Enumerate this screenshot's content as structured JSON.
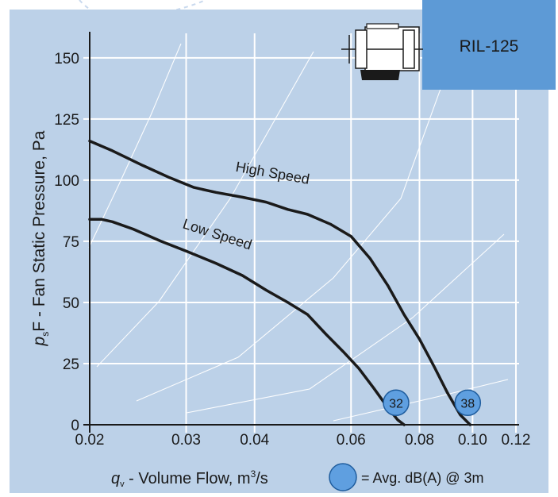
{
  "chart_data": {
    "type": "line",
    "model_label": "RIL-125",
    "ylabel_prefix": "p",
    "ylabel_sub": "s",
    "ylabel_rest": "F - Fan Static Pressure, Pa",
    "xlabel_prefix": "q",
    "xlabel_sub": "v",
    "xlabel_rest": " - Volume Flow, m",
    "xlabel_sup": "3",
    "xlabel_end": "/s",
    "x_scale": "log",
    "xlim": [
      0.02,
      0.12
    ],
    "ylim": [
      0,
      160
    ],
    "x_ticks": [
      {
        "value": 0.02,
        "label": "0.02"
      },
      {
        "value": 0.03,
        "label": "0.03"
      },
      {
        "value": 0.04,
        "label": "0.04"
      },
      {
        "value": 0.06,
        "label": "0.06"
      },
      {
        "value": 0.08,
        "label": "0.08"
      },
      {
        "value": 0.1,
        "label": "0.10"
      },
      {
        "value": 0.12,
        "label": "0.12"
      }
    ],
    "y_ticks": [
      {
        "value": 0,
        "label": "0"
      },
      {
        "value": 25,
        "label": "25"
      },
      {
        "value": 50,
        "label": "50"
      },
      {
        "value": 75,
        "label": "75"
      },
      {
        "value": 100,
        "label": "100"
      },
      {
        "value": 125,
        "label": "125"
      },
      {
        "value": 150,
        "label": "150"
      }
    ],
    "grid": true,
    "series": [
      {
        "name": "High Speed",
        "color": "#1a1a1a",
        "points": [
          [
            0.02,
            116
          ],
          [
            0.022,
            112
          ],
          [
            0.025,
            106
          ],
          [
            0.028,
            101
          ],
          [
            0.031,
            97
          ],
          [
            0.034,
            95
          ],
          [
            0.038,
            93
          ],
          [
            0.042,
            91
          ],
          [
            0.046,
            88
          ],
          [
            0.05,
            86
          ],
          [
            0.055,
            82
          ],
          [
            0.06,
            77
          ],
          [
            0.065,
            68
          ],
          [
            0.07,
            57
          ],
          [
            0.075,
            45
          ],
          [
            0.08,
            35
          ],
          [
            0.085,
            24
          ],
          [
            0.09,
            13
          ],
          [
            0.095,
            4
          ],
          [
            0.099,
            0
          ]
        ]
      },
      {
        "name": "Low Speed",
        "color": "#1a1a1a",
        "points": [
          [
            0.02,
            84
          ],
          [
            0.021,
            84
          ],
          [
            0.022,
            83
          ],
          [
            0.024,
            80
          ],
          [
            0.027,
            75
          ],
          [
            0.03,
            71
          ],
          [
            0.034,
            66
          ],
          [
            0.038,
            61
          ],
          [
            0.042,
            55
          ],
          [
            0.046,
            50
          ],
          [
            0.05,
            45
          ],
          [
            0.054,
            37
          ],
          [
            0.058,
            30
          ],
          [
            0.062,
            23
          ],
          [
            0.066,
            15
          ],
          [
            0.07,
            7
          ],
          [
            0.073,
            2
          ],
          [
            0.075,
            0
          ]
        ]
      }
    ],
    "sound_levels": [
      {
        "value": "32",
        "x": 0.0725,
        "y": 9
      },
      {
        "value": "38",
        "x": 0.098,
        "y": 9
      }
    ],
    "legend_text": "= Avg. dB(A) @ 3m",
    "legend_placement": "bottom",
    "colors": {
      "plot_background": "#bcd1e8",
      "grid": "#ffffff",
      "curve": "#1a1a1a",
      "label_box": "#5d9ad6",
      "marker_fill": "#5f9fe0",
      "marker_stroke": "#1f5d9e"
    },
    "icon": "inline-duct-fan-icon"
  }
}
